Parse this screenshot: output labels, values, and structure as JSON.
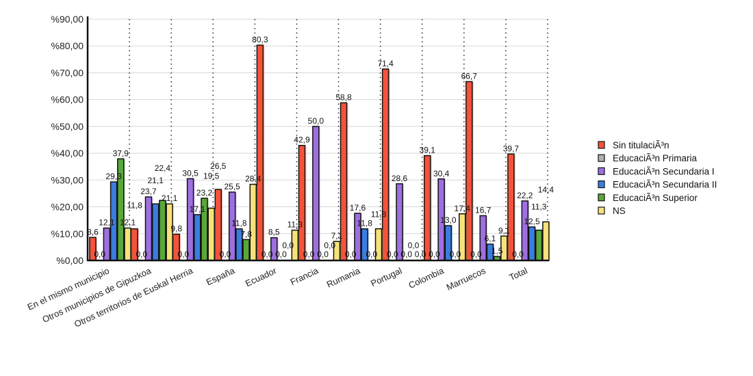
{
  "chart_data": {
    "type": "bar",
    "title": "",
    "xlabel": "",
    "ylabel": "",
    "ylim": [
      0,
      90
    ],
    "yticks": [
      "%0,00",
      "%10,00",
      "%20,00",
      "%30,00",
      "%40,00",
      "%50,00",
      "%60,00",
      "%70,00",
      "%80,00",
      "%90,00"
    ],
    "grid": true,
    "legend_position": "right",
    "categories": [
      "En el mismo municipio",
      "Otros municipios de Gipuzkoa",
      "Otros territorios de Euskal Herria",
      "España",
      "Ecuador",
      "Francia",
      "Rumania",
      "Portugal",
      "Colombia",
      "Marruecos",
      "Total"
    ],
    "series": [
      {
        "name": "Sin titulaciÃ³n",
        "color": "#f4533a",
        "values": [
          8.6,
          11.8,
          9.8,
          26.5,
          80.3,
          42.9,
          58.8,
          71.4,
          39.1,
          66.7,
          39.7
        ]
      },
      {
        "name": "EducaciÃ³n Primaria",
        "color": "#b0b0b0",
        "values": [
          0,
          0,
          0,
          0,
          0,
          0,
          0,
          0,
          0,
          0,
          0
        ]
      },
      {
        "name": "EducaciÃ³n Secundaria I",
        "color": "#9e6fe0",
        "values": [
          12.1,
          23.7,
          30.5,
          25.5,
          8.5,
          50.0,
          17.6,
          28.6,
          30.4,
          16.7,
          22.2
        ]
      },
      {
        "name": "EducaciÃ³n Secundaria II",
        "color": "#3a7de0",
        "values": [
          29.3,
          21.1,
          17.1,
          11.8,
          0,
          0,
          11.8,
          0,
          13.0,
          6.1,
          12.5
        ]
      },
      {
        "name": "EducaciÃ³n Superior",
        "color": "#5aa83a",
        "values": [
          37.9,
          22.4,
          23.2,
          7.8,
          0,
          0,
          0,
          0,
          0,
          1.5,
          11.3
        ]
      },
      {
        "name": "NS",
        "color": "#f7e27a",
        "values": [
          12.1,
          21.1,
          19.5,
          28.4,
          11.3,
          7.1,
          11.8,
          0,
          17.4,
          9.1,
          14.4
        ]
      }
    ]
  }
}
